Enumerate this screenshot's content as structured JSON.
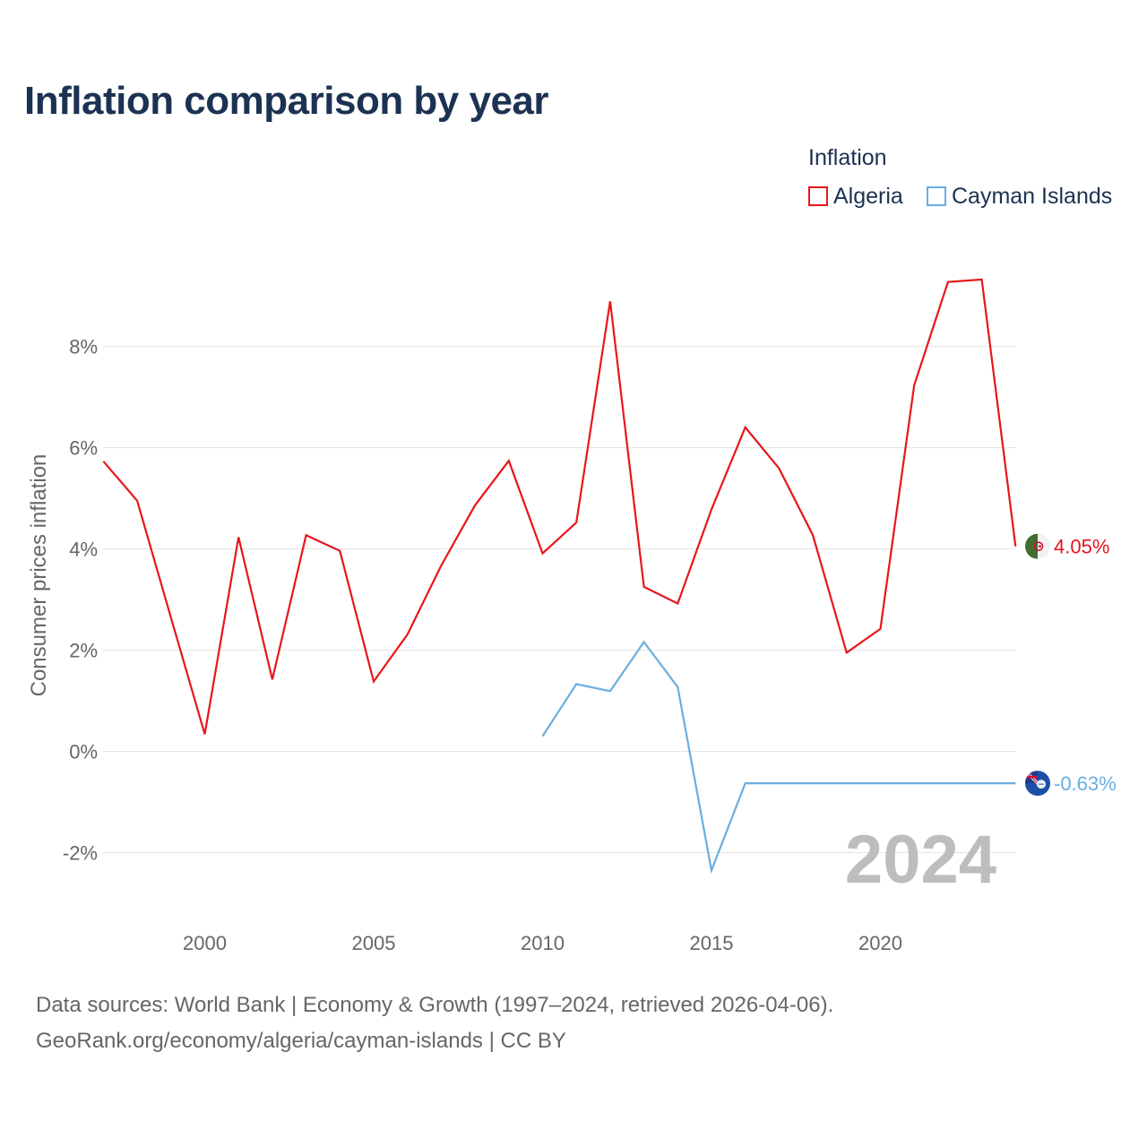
{
  "chart_data": {
    "type": "line",
    "title": "Inflation comparison by year",
    "legend_title": "Inflation",
    "legend_position": "top-right",
    "ylabel": "Consumer prices inflation",
    "xlabel": "",
    "xlim": [
      1997,
      2024
    ],
    "ylim": [
      -2.8,
      9.8
    ],
    "x_ticks": [
      2000,
      2005,
      2010,
      2015,
      2020
    ],
    "x_tick_labels": [
      "2000",
      "2005",
      "2010",
      "2015",
      "2020"
    ],
    "y_ticks": [
      -2,
      0,
      2,
      4,
      6,
      8
    ],
    "y_tick_labels": [
      "-2%",
      "0%",
      "2%",
      "4%",
      "6%",
      "8%"
    ],
    "grid": true,
    "year_label": "2024",
    "series": [
      {
        "name": "Algeria",
        "color": "#e8161b",
        "x": [
          1997,
          1998,
          1999,
          2000,
          2001,
          2002,
          2003,
          2004,
          2005,
          2006,
          2007,
          2008,
          2009,
          2010,
          2011,
          2012,
          2013,
          2014,
          2015,
          2016,
          2017,
          2018,
          2019,
          2020,
          2021,
          2022,
          2023,
          2024
        ],
        "values": [
          5.73,
          4.95,
          2.64,
          0.34,
          4.23,
          1.42,
          4.27,
          3.96,
          1.38,
          2.31,
          3.67,
          4.86,
          5.74,
          3.91,
          4.52,
          8.89,
          3.25,
          2.92,
          4.78,
          6.4,
          5.59,
          4.27,
          1.95,
          2.42,
          7.23,
          9.27,
          9.32,
          4.05
        ],
        "end_label": "4.05%",
        "flag_icon": "algeria-flag-icon"
      },
      {
        "name": "Cayman Islands",
        "color": "#6aaee0",
        "x": [
          2010,
          2011,
          2012,
          2013,
          2014,
          2015,
          2016,
          2017,
          2018,
          2019,
          2020,
          2021,
          2022,
          2023,
          2024
        ],
        "values": [
          0.3,
          1.33,
          1.19,
          2.16,
          1.27,
          -2.35,
          -0.63,
          -0.63,
          -0.63,
          -0.63,
          -0.63,
          -0.63,
          -0.63,
          -0.63,
          -0.63
        ],
        "end_label": "-0.63%",
        "flag_icon": "cayman-islands-flag-icon"
      }
    ]
  },
  "footer": {
    "line1": "Data sources: World Bank | Economy & Growth (1997–2024, retrieved 2026-04-06).",
    "line2": "GeoRank.org/economy/algeria/cayman-islands | CC BY"
  }
}
